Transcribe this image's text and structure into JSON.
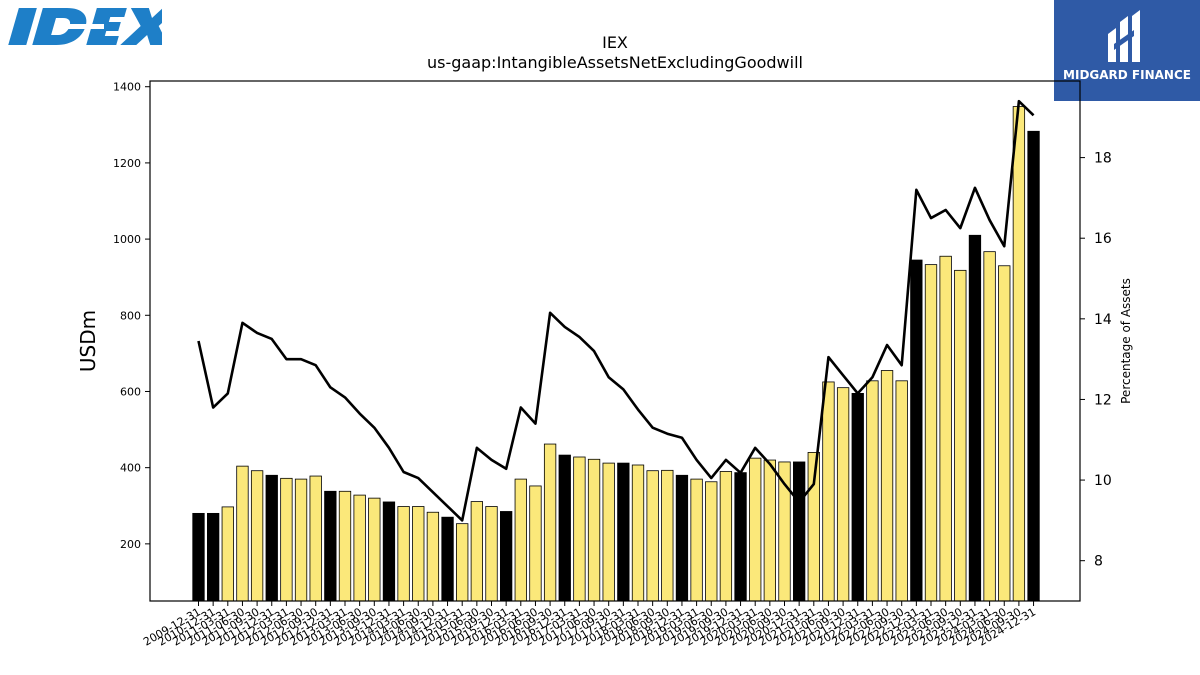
{
  "logos": {
    "left_text": "IDEX",
    "left_color": "#1e7fc8",
    "right_text": "MIDGARD FINANCE",
    "right_bg": "#2f5aa6"
  },
  "chart_data": {
    "type": "bar",
    "title": "IEX",
    "subtitle": "us-gaap:IntangibleAssetsNetExcludingGoodwill",
    "ylabel": "USDm",
    "y2label": "Percentage of Assets",
    "ylim": [
      50,
      1415
    ],
    "y2lim": [
      7,
      19.9
    ],
    "yticks": [
      200,
      400,
      600,
      800,
      1000,
      1200,
      1400
    ],
    "y2ticks": [
      8,
      10,
      12,
      14,
      16,
      18
    ],
    "colors": {
      "annual": "#000000",
      "quarter": "#fbe87a",
      "line": "#000000"
    },
    "categories": [
      "2009-12-31",
      "2010-12-31",
      "2011-03-31",
      "2011-06-30",
      "2011-09-30",
      "2011-12-31",
      "2012-03-31",
      "2012-06-30",
      "2012-09-30",
      "2012-12-31",
      "2013-03-31",
      "2013-06-30",
      "2013-09-30",
      "2013-12-31",
      "2014-03-31",
      "2014-06-30",
      "2014-09-30",
      "2014-12-31",
      "2015-03-31",
      "2015-06-30",
      "2015-09-30",
      "2015-12-31",
      "2016-03-31",
      "2016-06-30",
      "2016-09-30",
      "2016-12-31",
      "2017-03-31",
      "2017-06-30",
      "2017-09-30",
      "2017-12-31",
      "2018-03-31",
      "2018-06-30",
      "2018-09-30",
      "2018-12-31",
      "2019-03-31",
      "2019-06-30",
      "2019-09-30",
      "2019-12-31",
      "2020-03-31",
      "2020-06-30",
      "2020-09-30",
      "2020-12-31",
      "2021-03-31",
      "2021-06-30",
      "2021-09-30",
      "2021-12-31",
      "2022-03-31",
      "2022-06-30",
      "2022-09-30",
      "2022-12-31",
      "2023-03-31",
      "2023-06-30",
      "2023-09-30",
      "2023-12-31",
      "2024-03-31",
      "2024-06-30",
      "2024-09-30",
      "2024-12-31"
    ],
    "values": [
      280,
      280,
      297,
      404,
      392,
      380,
      372,
      370,
      378,
      338,
      338,
      328,
      320,
      310,
      298,
      298,
      283,
      270,
      253,
      311,
      298,
      285,
      370,
      352,
      462,
      433,
      428,
      422,
      412,
      412,
      407,
      392,
      393,
      380,
      370,
      363,
      390,
      387,
      425,
      420,
      415,
      415,
      440,
      625,
      610,
      595,
      628,
      655,
      628,
      945,
      933,
      955,
      918,
      1010,
      967,
      930,
      1348,
      1283
    ],
    "annual": [
      true,
      true,
      false,
      false,
      false,
      true,
      false,
      false,
      false,
      true,
      false,
      false,
      false,
      true,
      false,
      false,
      false,
      true,
      false,
      false,
      false,
      true,
      false,
      false,
      false,
      true,
      false,
      false,
      false,
      true,
      false,
      false,
      false,
      true,
      false,
      false,
      false,
      true,
      false,
      false,
      false,
      true,
      false,
      false,
      false,
      true,
      false,
      false,
      false,
      true,
      false,
      false,
      false,
      true,
      false,
      false,
      false,
      true
    ],
    "series": [
      {
        "axis": "right",
        "values": [
          13.45,
          11.8,
          12.15,
          13.9,
          13.65,
          13.5,
          13.0,
          13.0,
          12.85,
          12.3,
          12.05,
          11.65,
          11.3,
          10.8,
          10.2,
          10.05,
          9.7,
          9.35,
          9.0,
          10.8,
          10.5,
          10.28,
          11.8,
          11.4,
          14.15,
          13.8,
          13.55,
          13.2,
          12.55,
          12.25,
          11.75,
          11.3,
          11.15,
          11.05,
          10.5,
          10.05,
          10.5,
          10.18,
          10.8,
          10.4,
          9.9,
          9.45,
          9.9,
          13.05,
          12.6,
          12.15,
          12.55,
          13.35,
          12.85,
          17.2,
          16.5,
          16.7,
          16.25,
          17.25,
          16.45,
          15.8,
          19.4,
          19.05
        ]
      }
    ],
    "grid": false,
    "legend": "none"
  }
}
